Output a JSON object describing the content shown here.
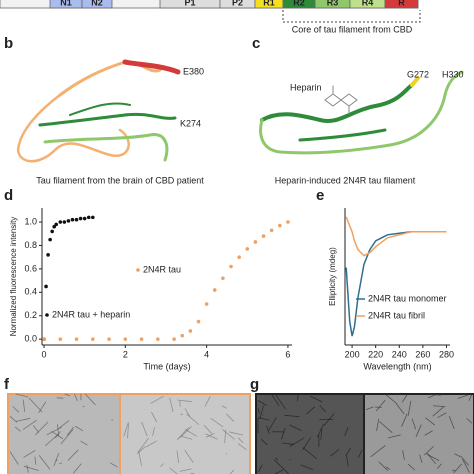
{
  "figure": {
    "domain_map": {
      "segments": [
        "N1",
        "N2",
        "P1",
        "P2",
        "R1",
        "R2",
        "R3",
        "R4",
        "R"
      ],
      "core_label": "Core of tau filament from CBD"
    },
    "panel_labels": [
      "b",
      "c",
      "d",
      "e",
      "f",
      "g"
    ],
    "panel_b": {
      "labels": [
        "E380",
        "K274"
      ],
      "caption": "Tau filament from the brain of CBD patient"
    },
    "panel_c": {
      "labels": [
        "Heparin",
        "G272",
        "H330"
      ],
      "caption": "Heparin-induced 2N4R tau filament"
    }
  },
  "chart_data": [
    {
      "type": "scatter",
      "xlabel": "Time (days)",
      "ylabel": "Normalized fluorescence intensity",
      "xlim": [
        -0.05,
        6.1
      ],
      "ylim": [
        -0.05,
        1.12
      ],
      "xticks": [
        0,
        2,
        4,
        6
      ],
      "yticks": [
        {
          "value": 0,
          "label": "0.0"
        },
        0.2,
        0.4,
        0.6,
        0.8,
        {
          "value": 1,
          "label": "1.0"
        }
      ],
      "series": [
        {
          "name": "2N4R tau + heparin",
          "color": "#111111",
          "x": [
            0,
            0.05,
            0.1,
            0.15,
            0.2,
            0.25,
            0.3,
            0.4,
            0.5,
            0.6,
            0.7,
            0.8,
            0.9,
            1.0,
            1.1,
            1.2
          ],
          "values": [
            0,
            0.45,
            0.72,
            0.85,
            0.92,
            0.96,
            0.98,
            1.0,
            1.0,
            1.01,
            1.02,
            1.02,
            1.03,
            1.03,
            1.04,
            1.04
          ]
        },
        {
          "name": "2N4R tau",
          "color": "#f0a060",
          "x": [
            0,
            0.4,
            0.8,
            1.2,
            1.6,
            2.0,
            2.4,
            2.8,
            3.2,
            3.4,
            3.6,
            3.8,
            4.0,
            4.2,
            4.4,
            4.6,
            4.8,
            5.0,
            5.2,
            5.4,
            5.6,
            5.8,
            6.0
          ],
          "values": [
            0,
            0,
            0,
            0,
            0,
            0,
            0,
            0,
            0,
            0.03,
            0.07,
            0.15,
            0.3,
            0.42,
            0.52,
            0.62,
            0.7,
            0.77,
            0.83,
            0.88,
            0.93,
            0.97,
            1.0
          ]
        }
      ]
    },
    {
      "type": "line",
      "xlabel": "Wavelength (nm)",
      "ylabel": "Ellipticity (mdeg)",
      "xlim": [
        194,
        283
      ],
      "ylim": [
        -38,
        8
      ],
      "xticks": [
        200,
        220,
        240,
        260,
        280
      ],
      "x": [
        195,
        198,
        200,
        202,
        205,
        210,
        215,
        220,
        230,
        240,
        250,
        260,
        270,
        280
      ],
      "series": [
        {
          "name": "2N4R tau monomer",
          "color": "#2f6f8f",
          "values": [
            -12,
            -30,
            -35,
            -32,
            -22,
            -11,
            -6,
            -3,
            -1,
            -0.5,
            0,
            0,
            0,
            0
          ]
        },
        {
          "name": "2N4R tau fibril",
          "color": "#f0a060",
          "values": [
            5,
            2,
            0,
            -3,
            -6,
            -8,
            -7,
            -5,
            -2,
            -1,
            0,
            0,
            0,
            0
          ]
        }
      ]
    }
  ]
}
